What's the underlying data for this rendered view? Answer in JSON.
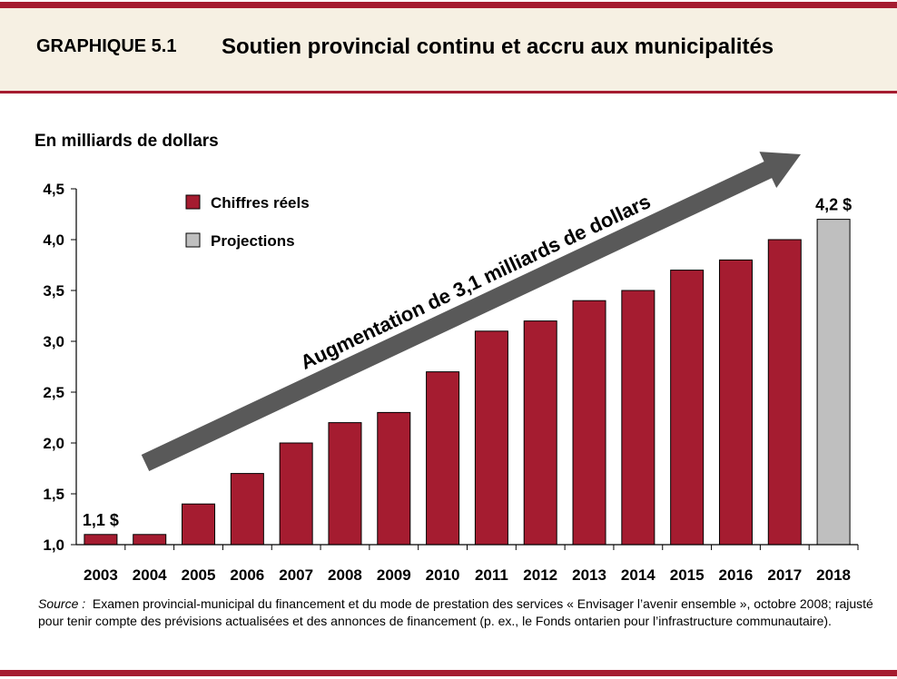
{
  "header": {
    "label": "GRAPHIQUE 5.1",
    "title": "Soutien provincial continu et accru aux municipalités"
  },
  "colors": {
    "brand": "#a51c30",
    "header_bg": "#f6f0e3",
    "actual": "#a51c30",
    "projection": "#bfbfbf",
    "arrow": "#595959"
  },
  "chart_data": {
    "type": "bar",
    "ylabel": "En milliards de dollars",
    "ylim": [
      1.0,
      4.5
    ],
    "yticks": [
      "1,0",
      "1,5",
      "2,0",
      "2,5",
      "3,0",
      "3,5",
      "4,0",
      "4,5"
    ],
    "categories": [
      "2003",
      "2004",
      "2005",
      "2006",
      "2007",
      "2008",
      "2009",
      "2010",
      "2011",
      "2012",
      "2013",
      "2014",
      "2015",
      "2016",
      "2017",
      "2018"
    ],
    "values": [
      1.1,
      1.1,
      1.4,
      1.7,
      2.0,
      2.2,
      2.3,
      2.7,
      3.1,
      3.2,
      3.4,
      3.5,
      3.7,
      3.8,
      4.0,
      4.2
    ],
    "series_type": [
      "actual",
      "actual",
      "actual",
      "actual",
      "actual",
      "actual",
      "actual",
      "actual",
      "actual",
      "actual",
      "actual",
      "actual",
      "actual",
      "actual",
      "actual",
      "projection"
    ],
    "legend": {
      "placement": "top-left",
      "actual": "Chiffres réels",
      "projection": "Projections"
    },
    "data_labels": {
      "first": "1,1 $",
      "last": "4,2 $"
    },
    "annotation": "Augmentation de 3,1 milliards de dollars",
    "grid": false
  },
  "source": {
    "label": "Source :",
    "text": "Examen provincial-municipal du financement et du mode de prestation des services « Envisager l’avenir ensemble », octobre 2008; rajusté pour tenir compte des prévisions actualisées et des annonces de financement (p. ex., le Fonds ontarien pour l’infrastructure communautaire)."
  }
}
